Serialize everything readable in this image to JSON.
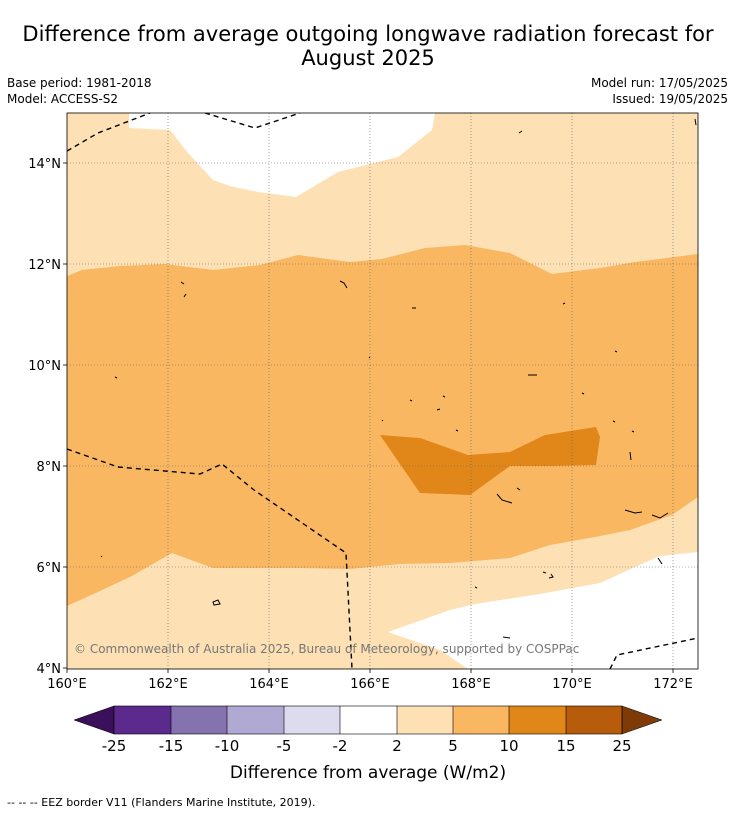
{
  "title_line1": "Difference from average outgoing longwave radiation forecast for",
  "title_line2": "August 2025",
  "base_period": "Base period: 1981-2018",
  "model": "Model: ACCESS-S2",
  "model_run": "Model run: 17/05/2025",
  "issued": "Issued: 19/05/2025",
  "copyright": "© Commonwealth of Australia 2025, Bureau of Meteorology, supported by COSPPac",
  "footer": "--  --  -- EEZ border V11 (Flanders Marine Institute, 2019).",
  "map": {
    "lat_ticks": [
      "4°N",
      "6°N",
      "8°N",
      "10°N",
      "12°N",
      "14°N"
    ],
    "lon_ticks": [
      "160°E",
      "162°E",
      "164°E",
      "166°E",
      "168°E",
      "170°E",
      "172°E"
    ],
    "lat_range": [
      4,
      15
    ],
    "lon_range": [
      160,
      172.5
    ]
  },
  "colorbar": {
    "label": "Difference from average (W/m2)",
    "tick_labels": [
      "-25",
      "-15",
      "-10",
      "-5",
      "-2",
      "2",
      "5",
      "10",
      "15",
      "25"
    ],
    "colors": [
      "#3b0f5a",
      "#5c2a8c",
      "#8573b0",
      "#b0a9d4",
      "#dcdcee",
      "#ffffff",
      "#fde0b3",
      "#fab762",
      "#e18618",
      "#b65c0b",
      "#7f3b07"
    ]
  }
}
